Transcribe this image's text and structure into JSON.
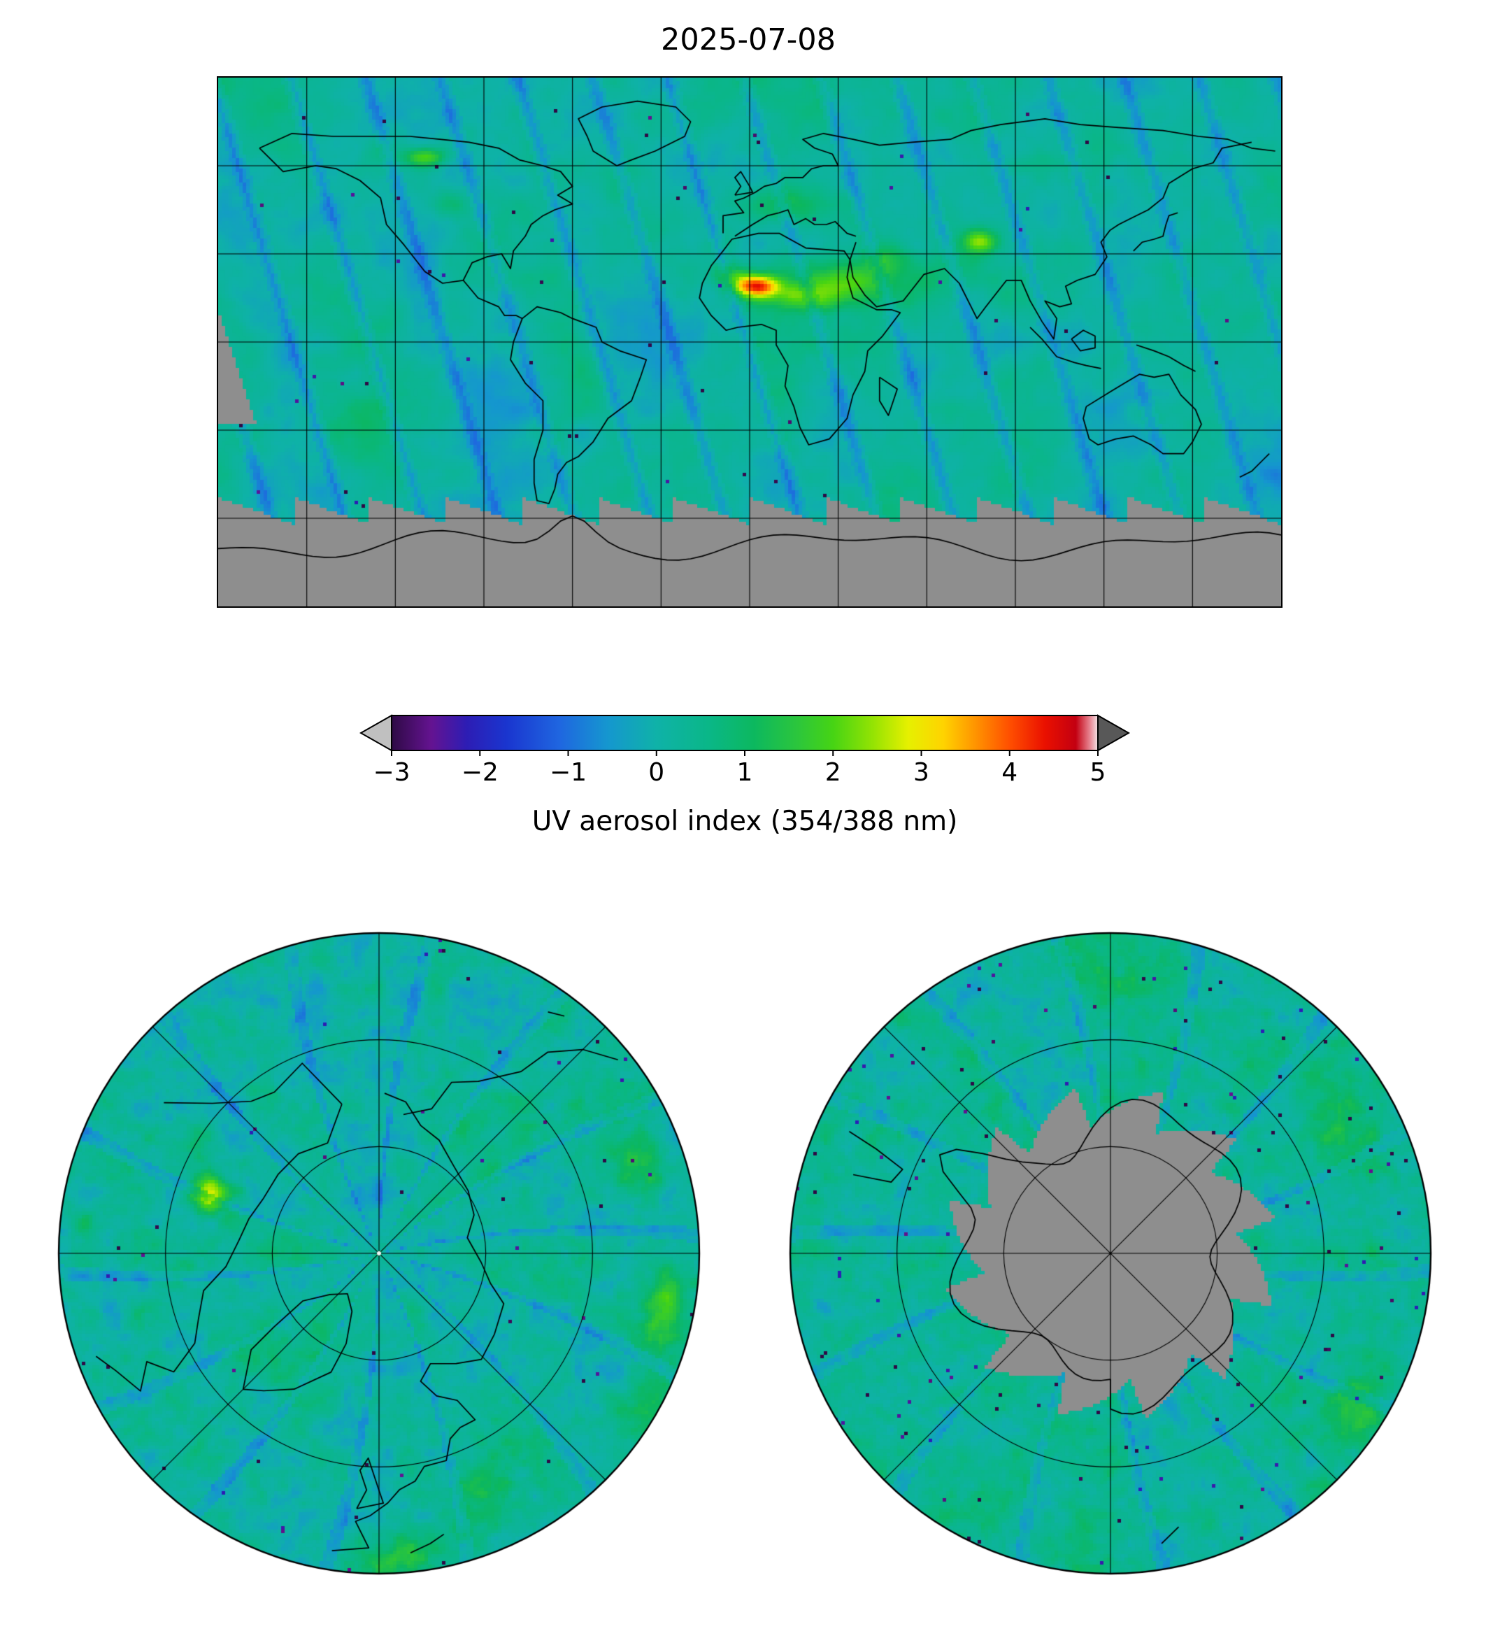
{
  "figure": {
    "title": "2025-07-08",
    "colorbar": {
      "label": "UV aerosol index (354/388 nm)",
      "ticks": [
        "−3",
        "−2",
        "−1",
        "0",
        "1",
        "2",
        "3",
        "4",
        "5"
      ],
      "min": -3,
      "max": 5,
      "extend": "both",
      "under_color": "#c0c0c0",
      "over_color": "#585858",
      "missing_color": "#8e8e8e",
      "stops": [
        {
          "v": -3.0,
          "c": "#2e0a45"
        },
        {
          "v": -2.55,
          "c": "#641391"
        },
        {
          "v": -2.15,
          "c": "#2d1db4"
        },
        {
          "v": -1.7,
          "c": "#1a35cf"
        },
        {
          "v": -1.1,
          "c": "#1f66e0"
        },
        {
          "v": -0.55,
          "c": "#1597cf"
        },
        {
          "v": 0.0,
          "c": "#0fb2a8"
        },
        {
          "v": 0.6,
          "c": "#0ab787"
        },
        {
          "v": 1.1,
          "c": "#0cb85f"
        },
        {
          "v": 1.6,
          "c": "#2cc63c"
        },
        {
          "v": 2.0,
          "c": "#46d414"
        },
        {
          "v": 2.45,
          "c": "#94e303"
        },
        {
          "v": 2.85,
          "c": "#e6f000"
        },
        {
          "v": 3.25,
          "c": "#ffd300"
        },
        {
          "v": 3.6,
          "c": "#ff9600"
        },
        {
          "v": 4.0,
          "c": "#ff4f00"
        },
        {
          "v": 4.4,
          "c": "#ea1000"
        },
        {
          "v": 4.75,
          "c": "#c30011"
        },
        {
          "v": 4.92,
          "c": "#e98f9b"
        },
        {
          "v": 5.0,
          "c": "#f2e4e6"
        }
      ]
    }
  },
  "chart_data": {
    "type": "heatmap",
    "title": "2025-07-08",
    "variable": "UV aerosol index (354/388 nm)",
    "value_range": [
      -3,
      5
    ],
    "colorbar_ticks": [
      -3,
      -2,
      -1,
      0,
      1,
      2,
      3,
      4,
      5
    ],
    "colorbar_extend": "both",
    "legend_position": "horizontal colorbar below global map",
    "panels": [
      {
        "id": "global-map",
        "projection": "equirectangular",
        "lon_range": [
          -180,
          180
        ],
        "lat_range": [
          -90,
          90
        ],
        "graticule_spacing_deg": 30,
        "missing_data_regions": [
          "gray band south of ~55°S with sawtooth swath edges (polar night)",
          "narrow gray swath sliver at far west edge, ~10°N to ~28°S"
        ]
      },
      {
        "id": "north-polar",
        "projection": "north polar stereographic",
        "lat_limit_deg": 40,
        "graticule": "circles ~every 17° latitude, meridians every 45°"
      },
      {
        "id": "south-polar",
        "projection": "south polar stereographic",
        "lat_limit_deg": -40,
        "graticule": "circles ~every 17° latitude, meridians every 45°",
        "missing_data_regions": [
          "gray polar cap poleward of ~65°S with pinwheel sawtooth swath edges"
        ]
      }
    ],
    "typical_background_value_range": [
      -1.5,
      1.0
    ],
    "notable_features": [
      {
        "region": "West Africa / Sahara (~0–10°E, 15–25°N)",
        "value": "3–5 (red/orange dust plume core)"
      },
      {
        "region": "Sahel and Middle East",
        "value": "1.5–3 (green/yellow)"
      },
      {
        "region": "Southern Europe / Mediterranean",
        "value": "1–2 (green)"
      },
      {
        "region": "Taklamakan / Central Asia (~80°E, 35°N)",
        "value": "2–3 (green, small red specks)"
      },
      {
        "region": "Northern Canada (~110°W, 60°63°N)",
        "value": "2–4 (smoke plume, bright green/yellow with red core)"
      },
      {
        "region": "Ocean background",
        "value": "−1.5 to 0.5 (blue to teal swath pattern)"
      },
      {
        "region": "South polar ring",
        "value": "scattered deep purple specks near −2.5"
      }
    ]
  }
}
